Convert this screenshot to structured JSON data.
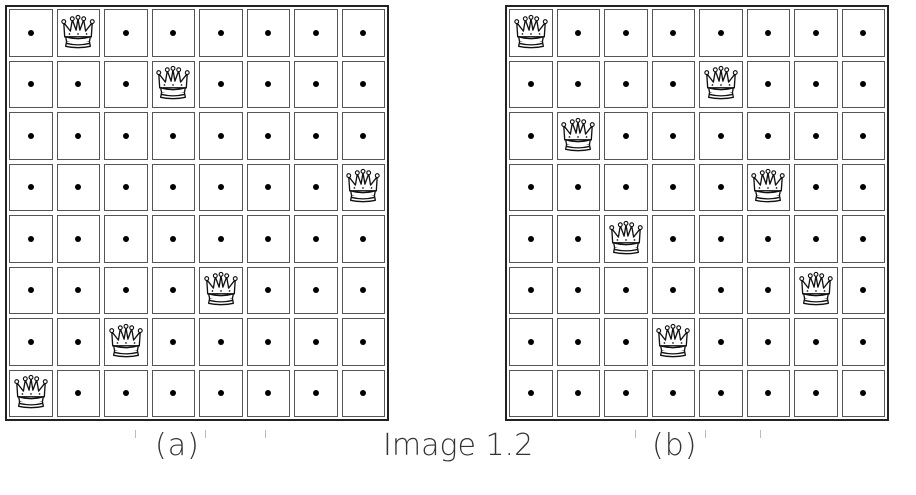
{
  "figure": {
    "title": "Image 1.2",
    "grid_size": 8,
    "colors": {
      "line": "#555555",
      "dot": "#000000",
      "background": "#ffffff"
    },
    "boards": [
      {
        "label": "(a)",
        "queens": [
          {
            "row": 0,
            "col": 1
          },
          {
            "row": 1,
            "col": 3
          },
          {
            "row": 3,
            "col": 7
          },
          {
            "row": 5,
            "col": 4
          },
          {
            "row": 6,
            "col": 2
          },
          {
            "row": 7,
            "col": 0
          }
        ]
      },
      {
        "label": "(b)",
        "queens": [
          {
            "row": 0,
            "col": 0
          },
          {
            "row": 1,
            "col": 4
          },
          {
            "row": 2,
            "col": 1
          },
          {
            "row": 3,
            "col": 5
          },
          {
            "row": 4,
            "col": 2
          },
          {
            "row": 5,
            "col": 6
          },
          {
            "row": 6,
            "col": 3
          }
        ]
      }
    ]
  }
}
